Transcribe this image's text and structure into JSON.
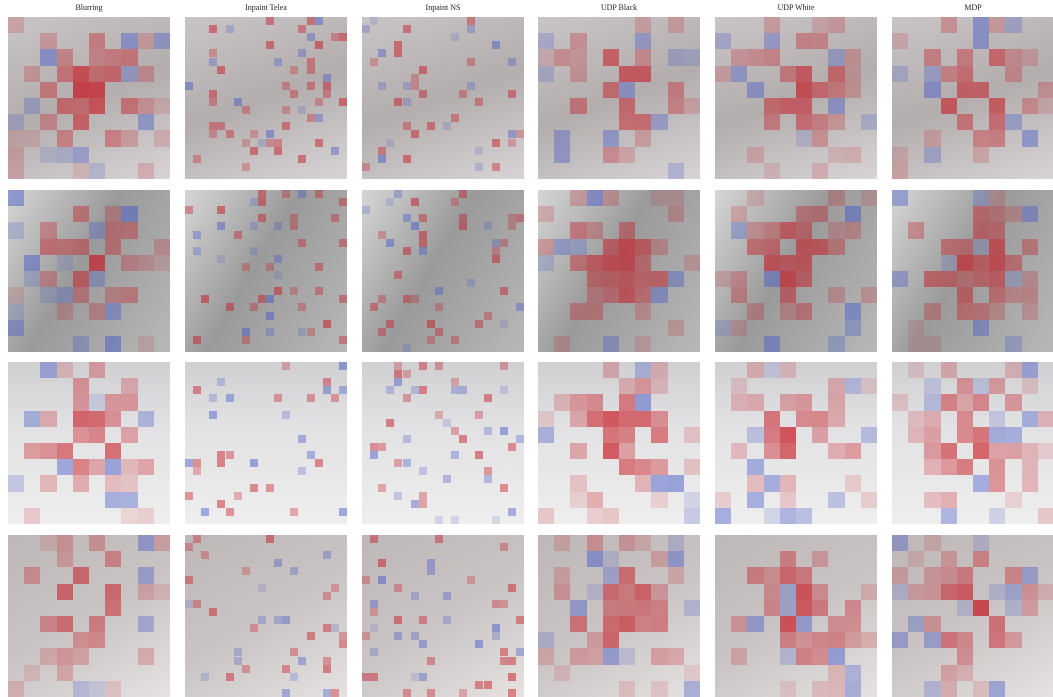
{
  "header": {
    "columns": [
      "Blurring",
      "Inpaint Telea",
      "Inpaint NS",
      "UDP Black",
      "UDP White",
      "MDP"
    ]
  }
}
